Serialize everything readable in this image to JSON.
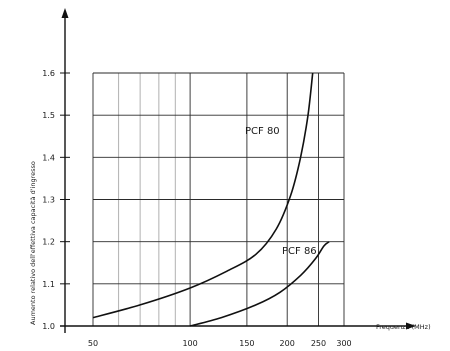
{
  "chart_data": {
    "type": "line",
    "title": "",
    "xlabel": "Frequenza (MHz)",
    "ylabel": "Aumento relativo dell'effettiva capacità d'ingresso",
    "x_scale": "log",
    "xlim": [
      50,
      300
    ],
    "ylim": [
      1.0,
      1.6
    ],
    "x_ticks": [
      {
        "value": 50,
        "label": "50"
      },
      {
        "value": 100,
        "label": "100"
      },
      {
        "value": 150,
        "label": "150"
      },
      {
        "value": 200,
        "label": "200"
      },
      {
        "value": 250,
        "label": "250"
      },
      {
        "value": 300,
        "label": "300"
      }
    ],
    "y_ticks": [
      {
        "value": 1.0,
        "label": "1.0"
      },
      {
        "value": 1.1,
        "label": "1.1"
      },
      {
        "value": 1.2,
        "label": "1.2"
      },
      {
        "value": 1.3,
        "label": "1.3"
      },
      {
        "value": 1.4,
        "label": "1.4"
      },
      {
        "value": 1.5,
        "label": "1.5"
      },
      {
        "value": 1.6,
        "label": "1.6"
      }
    ],
    "grid": true,
    "series": [
      {
        "name": "PCF 80",
        "x": [
          50,
          70,
          100,
          130,
          160,
          185,
          205,
          220,
          232,
          240
        ],
        "y": [
          1.02,
          1.05,
          1.09,
          1.13,
          1.17,
          1.23,
          1.31,
          1.4,
          1.5,
          1.6
        ]
      },
      {
        "name": "PCF 86",
        "x": [
          100,
          125,
          160,
          190,
          220,
          245,
          260,
          270
        ],
        "y": [
          1.0,
          1.02,
          1.05,
          1.08,
          1.12,
          1.16,
          1.19,
          1.2
        ]
      }
    ]
  }
}
